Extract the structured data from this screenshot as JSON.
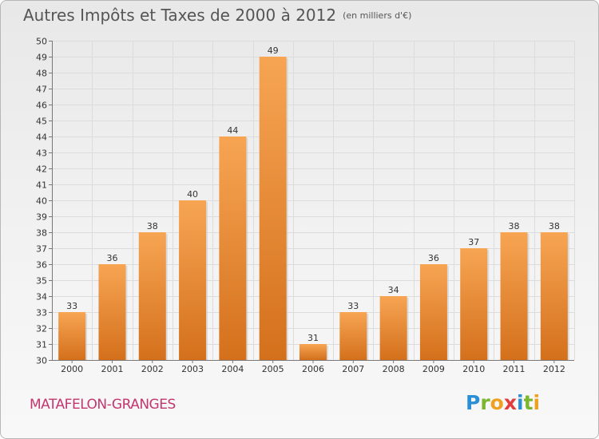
{
  "header": {
    "title": "Autres Impôts et Taxes de 2000 à 2012",
    "unit": "(en milliers d'€)"
  },
  "footer": {
    "commune": "MATAFELON-GRANGES",
    "logo": {
      "letters": [
        "P",
        "r",
        "o",
        "x",
        "i",
        "t",
        "i"
      ],
      "colors": [
        "#2a8fd6",
        "#7ab62e",
        "#f0a020",
        "#e23c3c",
        "#2a8fd6",
        "#7ab62e",
        "#f0a020"
      ]
    }
  },
  "chart_data": {
    "type": "bar",
    "title": "Autres Impôts et Taxes de 2000 à 2012",
    "subtitle": "(en milliers d'€)",
    "xlabel": "",
    "ylabel": "",
    "categories": [
      "2000",
      "2001",
      "2002",
      "2003",
      "2004",
      "2005",
      "2006",
      "2007",
      "2008",
      "2009",
      "2010",
      "2011",
      "2012"
    ],
    "values": [
      33,
      36,
      38,
      40,
      44,
      49,
      31,
      33,
      34,
      36,
      37,
      38,
      38
    ],
    "ylim": [
      30,
      50
    ],
    "yticks": [
      30,
      31,
      32,
      33,
      34,
      35,
      36,
      37,
      38,
      39,
      40,
      41,
      42,
      43,
      44,
      45,
      46,
      47,
      48,
      49,
      50
    ],
    "grid": true,
    "bar_color_top": "#f7a553",
    "bar_color_bottom": "#d4701c",
    "legend": "none"
  }
}
